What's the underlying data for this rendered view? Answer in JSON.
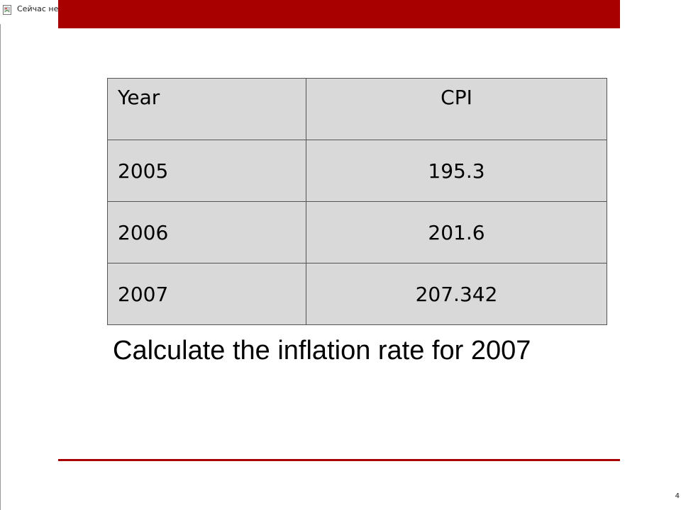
{
  "header": {
    "image_alt_text": "Сейчас не у"
  },
  "table": {
    "headers": [
      "Year",
      "CPI"
    ],
    "rows": [
      [
        "2005",
        "195.3"
      ],
      [
        "2006",
        "201.6"
      ],
      [
        "2007",
        "207.342"
      ]
    ]
  },
  "question": "Calculate the inflation rate for 2007",
  "footer": {
    "page_number": "4"
  },
  "colors": {
    "accent": "#a80000",
    "table_fill": "#d9d9d9"
  }
}
